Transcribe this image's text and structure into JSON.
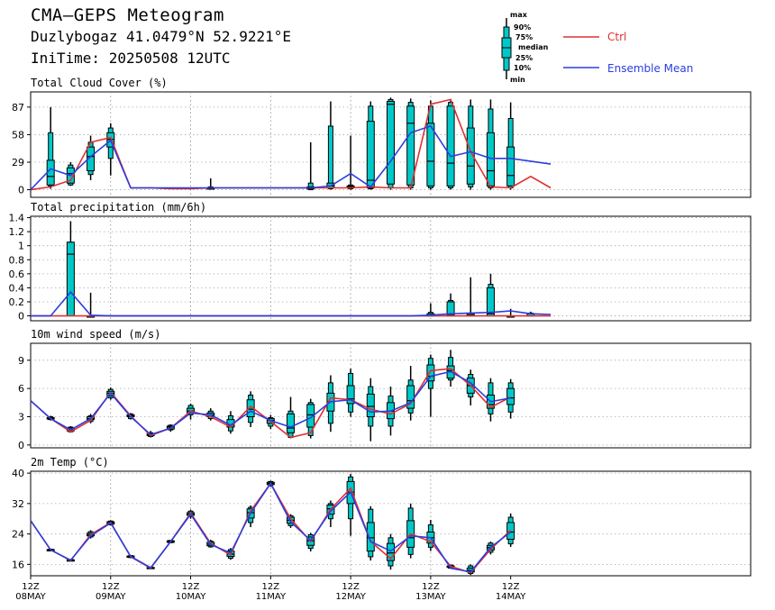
{
  "header": {
    "title": "CMA—GEPS Meteogram",
    "location": "Duzlybogaz 41.0479°N 52.9221°E",
    "init_time": "IniTime: 20250508 12UTC"
  },
  "legend": {
    "box_labels": [
      "max",
      "90%",
      "75%",
      "median",
      "25%",
      "10%",
      "min"
    ],
    "ctrl_label": "Ctrl",
    "mean_label": "Ensemble Mean",
    "ctrl_color": "#e03030",
    "mean_color": "#2a3ee0",
    "box_color": "#00c8c8"
  },
  "chart_data": {
    "type": "line",
    "x_step_hours": 6,
    "x_tick_labels": [
      {
        "top": "12Z",
        "bottom": "08MAY"
      },
      {
        "top": "12Z",
        "bottom": "09MAY"
      },
      {
        "top": "12Z",
        "bottom": "10MAY"
      },
      {
        "top": "12Z",
        "bottom": "11MAY"
      },
      {
        "top": "12Z",
        "bottom": "12MAY"
      },
      {
        "top": "12Z",
        "bottom": "13MAY"
      },
      {
        "top": "12Z",
        "bottom": "14MAY"
      }
    ],
    "panels": [
      {
        "title": "Total Cloud Cover (%)",
        "ylim": [
          -8,
          103
        ],
        "yticks": [
          0,
          29,
          58,
          87
        ],
        "ctrl": [
          0,
          3,
          10,
          50,
          55,
          2,
          2,
          1,
          1,
          2,
          2,
          2,
          2,
          2,
          2,
          2,
          2,
          3,
          2,
          2,
          90,
          95,
          40,
          3,
          2,
          14,
          2
        ],
        "mean": [
          0,
          22,
          15,
          35,
          52,
          2,
          2,
          2,
          2,
          2,
          2,
          2,
          2,
          2,
          2,
          4,
          17,
          3,
          30,
          60,
          67,
          35,
          40,
          33,
          33,
          30,
          27
        ],
        "boxes": [
          null,
          [
            1,
            4,
            5,
            14,
            31,
            60,
            87
          ],
          [
            4,
            5,
            7,
            17,
            23,
            26,
            29
          ],
          [
            10,
            16,
            20,
            35,
            45,
            50,
            57
          ],
          [
            15,
            33,
            45,
            53,
            60,
            65,
            70
          ],
          null,
          null,
          null,
          null,
          [
            0,
            1,
            1,
            1,
            2,
            3,
            12
          ],
          null,
          null,
          null,
          null,
          [
            0,
            0,
            1,
            2,
            3,
            7,
            50
          ],
          [
            0,
            1,
            2,
            4,
            7,
            67,
            93
          ],
          [
            0,
            1,
            2,
            3,
            4,
            5,
            57
          ],
          [
            0,
            1,
            2,
            10,
            72,
            88,
            93
          ],
          [
            0,
            2,
            6,
            90,
            93,
            95,
            97
          ],
          [
            0,
            2,
            5,
            70,
            88,
            92,
            96
          ],
          [
            0,
            2,
            4,
            30,
            70,
            88,
            94
          ],
          [
            0,
            2,
            4,
            28,
            88,
            92,
            95
          ],
          [
            0,
            3,
            6,
            25,
            65,
            88,
            95
          ],
          [
            0,
            2,
            4,
            20,
            60,
            85,
            95
          ],
          [
            0,
            2,
            4,
            15,
            45,
            75,
            92
          ]
        ]
      },
      {
        "title": "Total precipitation (mm/6h)",
        "ylim": [
          -0.07,
          1.42
        ],
        "yticks": [
          0,
          0.2,
          0.4,
          0.6,
          0.8,
          1,
          1.2,
          1.4
        ],
        "ctrl": [
          0,
          0,
          0,
          0,
          0,
          0,
          0,
          0,
          0,
          0,
          0,
          0,
          0,
          0,
          0,
          0,
          0,
          0,
          0,
          0,
          0,
          0,
          0,
          0,
          0,
          0,
          0
        ],
        "mean": [
          0,
          0,
          0.34,
          0.01,
          0,
          0,
          0,
          0,
          0,
          0,
          0,
          0,
          0,
          0,
          0,
          0,
          0,
          0,
          0,
          0,
          0.01,
          0.03,
          0.04,
          0.05,
          0.07,
          0.03,
          0.02
        ],
        "boxes": [
          null,
          null,
          [
            0,
            0,
            0,
            0.88,
            1.05,
            1.05,
            1.35
          ],
          [
            0,
            0,
            0,
            0,
            0,
            0,
            0.33
          ],
          null,
          null,
          null,
          null,
          null,
          null,
          null,
          null,
          null,
          null,
          null,
          null,
          null,
          null,
          null,
          null,
          [
            0,
            0,
            0,
            0,
            0.03,
            0.05,
            0.18
          ],
          [
            0,
            0,
            0,
            0.01,
            0.2,
            0.22,
            0.32
          ],
          [
            0,
            0,
            0,
            0.01,
            0.03,
            0.04,
            0.55
          ],
          [
            0,
            0,
            0,
            0.03,
            0.4,
            0.45,
            0.6
          ],
          [
            0,
            0,
            0,
            0,
            0,
            0,
            0.1
          ],
          [
            0,
            0,
            0,
            0,
            0.03,
            0.04,
            0.06
          ]
        ]
      },
      {
        "title": "10m wind speed (m/s)",
        "ylim": [
          -0.3,
          10.8
        ],
        "yticks": [
          0,
          3,
          6,
          9
        ],
        "ctrl": [
          4.7,
          2.8,
          1.4,
          2.6,
          5.6,
          3.1,
          1.0,
          1.8,
          3.6,
          3.0,
          1.9,
          4.1,
          2.5,
          0.8,
          1.3,
          5.0,
          4.8,
          3.8,
          3.3,
          4.4,
          7.9,
          8.1,
          6.3,
          4.0,
          5.1
        ],
        "mean": [
          4.7,
          2.8,
          1.6,
          2.8,
          5.5,
          3.0,
          1.1,
          1.8,
          3.4,
          3.2,
          2.1,
          3.6,
          2.6,
          1.9,
          2.9,
          4.6,
          4.8,
          3.5,
          3.6,
          4.5,
          7.3,
          7.8,
          6.6,
          4.6,
          5.0
        ],
        "boxes": [
          null,
          [
            2.6,
            2.7,
            2.8,
            2.8,
            2.9,
            3.0,
            3.1
          ],
          [
            1.3,
            1.4,
            1.5,
            1.6,
            1.8,
            1.9,
            2.0
          ],
          [
            2.3,
            2.5,
            2.7,
            2.8,
            3.0,
            3.1,
            3.3
          ],
          [
            4.8,
            5.0,
            5.2,
            5.5,
            5.7,
            5.9,
            6.1
          ],
          [
            2.7,
            2.8,
            3.0,
            3.1,
            3.2,
            3.3,
            3.4
          ],
          [
            0.8,
            0.9,
            1.0,
            1.1,
            1.2,
            1.3,
            1.5
          ],
          [
            1.4,
            1.6,
            1.7,
            1.9,
            2.0,
            2.1,
            2.2
          ],
          [
            2.7,
            3.2,
            3.4,
            3.6,
            3.9,
            4.2,
            4.4
          ],
          [
            2.6,
            2.8,
            3.0,
            3.2,
            3.4,
            3.6,
            3.9
          ],
          [
            1.2,
            1.5,
            1.9,
            2.1,
            2.7,
            3.1,
            3.6
          ],
          [
            1.9,
            2.4,
            3.0,
            3.8,
            4.8,
            5.3,
            5.7
          ],
          [
            1.7,
            2.0,
            2.3,
            2.6,
            2.8,
            2.9,
            3.2
          ],
          [
            0.7,
            0.8,
            1.3,
            1.8,
            3.3,
            3.6,
            5.1
          ],
          [
            0.7,
            1.0,
            1.9,
            3.2,
            4.3,
            4.5,
            4.9
          ],
          [
            1.4,
            2.3,
            3.6,
            4.6,
            5.5,
            6.6,
            7.4
          ],
          [
            3.0,
            3.5,
            4.4,
            4.9,
            6.3,
            7.6,
            8.1
          ],
          [
            0.4,
            2.0,
            3.0,
            4.1,
            5.4,
            6.2,
            7.1
          ],
          [
            1.0,
            2.0,
            2.8,
            3.6,
            4.5,
            5.2,
            6.2
          ],
          [
            2.6,
            3.4,
            3.9,
            4.7,
            6.3,
            6.9,
            8.4
          ],
          [
            3.0,
            6.0,
            6.8,
            7.3,
            8.5,
            9.2,
            9.6
          ],
          [
            6.2,
            6.9,
            7.1,
            7.9,
            8.4,
            9.3,
            10.1
          ],
          [
            4.2,
            5.1,
            5.5,
            6.3,
            7.1,
            7.5,
            8.0
          ],
          [
            2.5,
            3.3,
            3.9,
            4.3,
            5.3,
            6.6,
            7.1
          ],
          [
            2.8,
            3.5,
            4.3,
            5.0,
            6.0,
            6.6,
            7.0
          ]
        ]
      },
      {
        "title": "2m Temp (°C)",
        "ylim": [
          13,
          40.5
        ],
        "yticks": [
          16,
          24,
          32,
          40
        ],
        "ctrl": [
          27.5,
          19.8,
          17.0,
          23.8,
          27.0,
          18.0,
          15.0,
          22.0,
          29.5,
          21.5,
          18.5,
          30.0,
          37.3,
          28.0,
          22.0,
          30.5,
          36.0,
          22.0,
          17.5,
          24.0,
          22.0,
          15.5,
          13.8,
          20.0,
          25.0
        ],
        "mean": [
          27.5,
          19.8,
          17.1,
          23.5,
          26.9,
          18.1,
          15.1,
          22.0,
          29.2,
          21.2,
          19.0,
          29.5,
          37.3,
          27.2,
          22.3,
          30.0,
          35.0,
          22.0,
          19.5,
          23.5,
          23.0,
          15.0,
          14.0,
          20.5,
          24.5
        ],
        "boxes": [
          null,
          [
            19.5,
            19.6,
            19.7,
            19.8,
            19.9,
            20.0,
            20.1
          ],
          [
            16.8,
            16.9,
            17.0,
            17.1,
            17.2,
            17.3,
            17.4
          ],
          [
            22.8,
            23.2,
            23.5,
            23.8,
            24.2,
            24.6,
            25.0
          ],
          [
            26.2,
            26.4,
            26.6,
            26.9,
            27.2,
            27.4,
            27.6
          ],
          [
            17.6,
            17.8,
            17.9,
            18.0,
            18.2,
            18.3,
            18.4
          ],
          [
            14.8,
            14.9,
            15.0,
            15.1,
            15.2,
            15.3,
            15.4
          ],
          [
            21.6,
            21.7,
            21.8,
            22.0,
            22.2,
            22.3,
            22.4
          ],
          [
            28.0,
            28.6,
            28.9,
            29.2,
            29.6,
            30.0,
            30.4
          ],
          [
            20.4,
            20.6,
            20.9,
            21.3,
            21.8,
            22.1,
            22.5
          ],
          [
            17.2,
            17.6,
            18.1,
            18.7,
            19.5,
            19.9,
            20.3
          ],
          [
            25.8,
            27.0,
            28.2,
            29.6,
            30.6,
            31.0,
            31.5
          ],
          [
            36.4,
            36.8,
            37.0,
            37.3,
            37.6,
            37.8,
            38.0
          ],
          [
            25.6,
            26.2,
            26.8,
            27.6,
            28.4,
            28.8,
            29.2
          ],
          [
            19.4,
            20.2,
            21.0,
            22.2,
            23.2,
            23.8,
            24.3
          ],
          [
            25.8,
            28.0,
            29.2,
            30.6,
            31.6,
            32.0,
            32.8
          ],
          [
            23.5,
            28.0,
            32.0,
            35.0,
            37.8,
            39.0,
            39.8
          ],
          [
            17.0,
            18.0,
            19.5,
            23.0,
            27.0,
            30.5,
            31.3
          ],
          [
            14.6,
            15.6,
            17.0,
            19.0,
            21.5,
            23.0,
            24.0
          ],
          [
            17.6,
            18.6,
            20.5,
            23.0,
            27.5,
            30.8,
            32.0
          ],
          [
            19.5,
            20.5,
            21.6,
            23.0,
            24.5,
            26.4,
            27.7
          ],
          [
            14.8,
            15.0,
            15.2,
            15.4,
            15.6,
            15.8,
            16.0
          ],
          [
            13.2,
            13.6,
            14.0,
            14.4,
            15.0,
            15.6,
            16.0
          ],
          [
            18.6,
            19.2,
            19.8,
            20.4,
            21.0,
            21.6,
            22.0
          ],
          [
            20.6,
            21.4,
            22.6,
            24.5,
            27.0,
            28.4,
            29.4
          ]
        ]
      }
    ]
  }
}
